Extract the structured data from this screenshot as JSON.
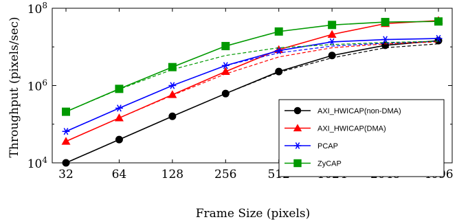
{
  "chart_data": {
    "type": "line",
    "title": "",
    "xlabel": "Frame Size (pixels)",
    "ylabel": "Throughput (pixels/sec)",
    "x_scale": "log2",
    "y_scale": "log10",
    "x_ticks": [
      32,
      64,
      128,
      256,
      512,
      1024,
      2048,
      4096
    ],
    "x_tick_labels": [
      "32",
      "64",
      "128",
      "256",
      "512",
      "1024",
      "2048",
      "4096"
    ],
    "y_ticks": [
      10000,
      1000000,
      100000000
    ],
    "y_tick_labels": [
      {
        "base": "10",
        "exp": "4"
      },
      {
        "base": "10",
        "exp": "6"
      },
      {
        "base": "10",
        "exp": "8"
      }
    ],
    "xlim": [
      32,
      4096
    ],
    "ylim": [
      10000,
      100000000
    ],
    "grid": false,
    "legend_position": "lower-right",
    "series": [
      {
        "name": "AXI_HWICAP(non-DMA)",
        "color": "#000000",
        "marker": "circle",
        "x": [
          32,
          64,
          128,
          256,
          512,
          1024,
          2048,
          4096
        ],
        "values": [
          10000,
          40000,
          160000,
          620000,
          2300000,
          6000000,
          11000000,
          14500000
        ],
        "theoretical": [
          10000,
          40000,
          160000,
          620000,
          2200000,
          5200000,
          9500000,
          12000000
        ]
      },
      {
        "name": "AXI_HWICAP(DMA)",
        "color": "#ff0000",
        "marker": "triangle",
        "x": [
          32,
          64,
          128,
          256,
          512,
          1024,
          2048,
          4096
        ],
        "values": [
          36000,
          145000,
          580000,
          2300000,
          8500000,
          21000000,
          40000000,
          48000000
        ],
        "theoretical": [
          36000,
          145000,
          560000,
          2000000,
          5500000,
          9500000,
          12000000,
          13500000
        ]
      },
      {
        "name": "PCAP",
        "color": "#0000ff",
        "marker": "star",
        "x": [
          32,
          64,
          128,
          256,
          512,
          1024,
          2048,
          4096
        ],
        "values": [
          65000,
          260000,
          1000000,
          3300000,
          8000000,
          13500000,
          15500000,
          16500000
        ],
        "theoretical": [
          65000,
          260000,
          1000000,
          3300000,
          7000000,
          10500000,
          12500000,
          14000000
        ]
      },
      {
        "name": "ZyCAP",
        "color": "#009900",
        "marker": "square",
        "x": [
          32,
          64,
          128,
          256,
          512,
          1024,
          2048,
          4096
        ],
        "values": [
          210000,
          820000,
          3000000,
          10500000,
          25000000,
          37000000,
          44000000,
          45500000
        ],
        "theoretical": [
          210000,
          800000,
          2600000,
          6000000,
          9500000,
          11500000,
          13000000,
          14000000
        ]
      }
    ]
  }
}
